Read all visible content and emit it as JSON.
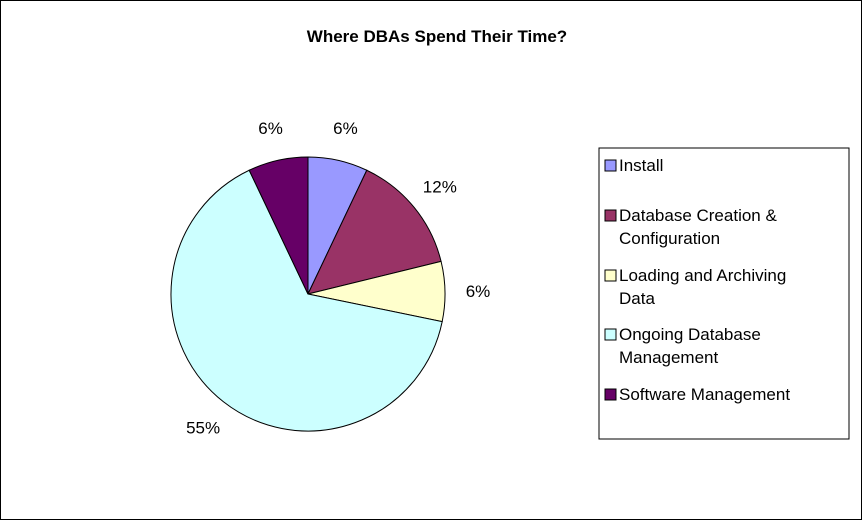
{
  "chart_data": {
    "type": "pie",
    "title": "Where DBAs Spend Their Time?",
    "categories": [
      "Install",
      "Database Creation & Configuration",
      "Loading and Archiving Data",
      "Ongoing Database Management",
      "Software Management"
    ],
    "values": [
      6,
      12,
      6,
      55,
      6
    ],
    "labels": [
      "6%",
      "12%",
      "6%",
      "55%",
      "6%"
    ],
    "colors": [
      "#9999ff",
      "#993366",
      "#ffffcc",
      "#ccffff",
      "#660066"
    ],
    "legend_lines": [
      [
        "Install"
      ],
      [
        "Database Creation &",
        "Configuration"
      ],
      [
        "Loading and Archiving",
        "Data"
      ],
      [
        "Ongoing Database",
        "Management"
      ],
      [
        "Software Management"
      ]
    ],
    "legend_position": "right",
    "start_angle": "top, clockwise"
  }
}
